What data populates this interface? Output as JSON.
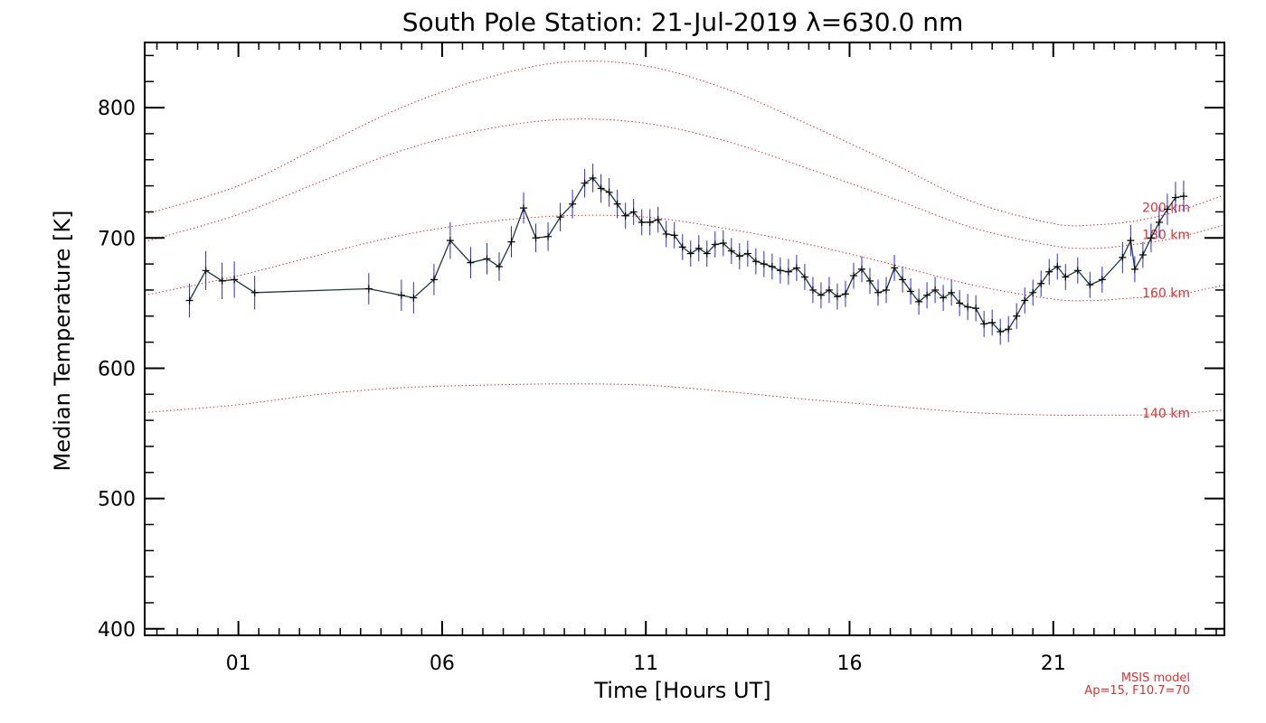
{
  "chart_data": {
    "type": "line",
    "title": "South Pole Station: 21-Jul-2019 λ=630.0 nm",
    "xlabel": "Time [Hours UT]",
    "ylabel": "Median Temperature [K]",
    "xlim": [
      -1.3,
      25.2
    ],
    "ylim": [
      395,
      850
    ],
    "xticks": [
      1,
      6,
      11,
      16,
      21
    ],
    "xtick_labels": [
      "01",
      "06",
      "11",
      "16",
      "21"
    ],
    "yticks": [
      400,
      500,
      600,
      700,
      800
    ],
    "ytick_labels": [
      "400",
      "500",
      "600",
      "700",
      "800"
    ],
    "grid": false,
    "note_lines": [
      "MSIS model",
      "Ap=15, F10.7=70"
    ],
    "model_curves": [
      {
        "label": "200 km",
        "x": [
          -1.3,
          1,
          3,
          5,
          7,
          9,
          11,
          13,
          15,
          17,
          19,
          21,
          22,
          23,
          24,
          25.2
        ],
        "y": [
          718,
          740,
          770,
          800,
          822,
          835,
          832,
          814,
          787,
          758,
          728,
          711,
          710,
          713,
          720,
          733
        ]
      },
      {
        "label": "180 km",
        "x": [
          -1.3,
          1,
          3,
          5,
          7,
          9,
          11,
          13,
          15,
          17,
          19,
          21,
          22,
          23,
          24,
          25.2
        ],
        "y": [
          697,
          718,
          743,
          767,
          783,
          791,
          788,
          774,
          753,
          731,
          708,
          694,
          692,
          695,
          700,
          710
        ]
      },
      {
        "label": "160 km",
        "x": [
          -1.3,
          1,
          3,
          5,
          7,
          9,
          11,
          13,
          15,
          17,
          19,
          21,
          22,
          23,
          24,
          25.2
        ],
        "y": [
          656,
          671,
          687,
          702,
          712,
          717,
          716,
          707,
          695,
          680,
          664,
          653,
          652,
          654,
          656,
          664
        ]
      },
      {
        "label": "140 km",
        "x": [
          -1.3,
          1,
          3,
          5,
          7,
          9,
          11,
          13,
          15,
          17,
          19,
          21,
          22,
          23,
          24,
          25.2
        ],
        "y": [
          566,
          572,
          580,
          585,
          587,
          588,
          587,
          582,
          576,
          571,
          566,
          564,
          564,
          564,
          565,
          568
        ]
      }
    ],
    "series": [
      {
        "name": "Median Temperature",
        "x": [
          -0.2,
          0.2,
          0.6,
          0.9,
          1.4,
          4.2,
          5.0,
          5.3,
          5.8,
          6.2,
          6.7,
          7.1,
          7.4,
          7.7,
          8.0,
          8.3,
          8.6,
          8.9,
          9.2,
          9.5,
          9.7,
          9.9,
          10.1,
          10.3,
          10.5,
          10.7,
          10.9,
          11.1,
          11.3,
          11.5,
          11.7,
          11.9,
          12.1,
          12.3,
          12.5,
          12.7,
          12.9,
          13.1,
          13.3,
          13.5,
          13.7,
          13.9,
          14.1,
          14.3,
          14.5,
          14.7,
          14.9,
          15.1,
          15.3,
          15.5,
          15.7,
          15.9,
          16.1,
          16.3,
          16.5,
          16.7,
          16.9,
          17.1,
          17.3,
          17.5,
          17.7,
          17.9,
          18.1,
          18.3,
          18.5,
          18.7,
          18.9,
          19.1,
          19.3,
          19.5,
          19.7,
          19.9,
          20.1,
          20.3,
          20.5,
          20.7,
          20.9,
          21.1,
          21.3,
          21.6,
          21.9,
          22.2,
          22.7,
          22.9,
          23.0,
          23.2,
          23.4,
          23.6,
          23.8,
          24.0,
          24.2
        ],
        "y": [
          652,
          675,
          667,
          668,
          658,
          661,
          656,
          654,
          668,
          698,
          681,
          684,
          678,
          697,
          723,
          700,
          701,
          716,
          726,
          742,
          746,
          738,
          735,
          726,
          717,
          720,
          712,
          712,
          714,
          703,
          702,
          693,
          688,
          692,
          688,
          695,
          696,
          690,
          686,
          688,
          682,
          680,
          678,
          675,
          674,
          677,
          670,
          660,
          656,
          660,
          655,
          657,
          671,
          676,
          667,
          658,
          660,
          677,
          668,
          659,
          651,
          656,
          660,
          654,
          658,
          650,
          647,
          646,
          634,
          635,
          628,
          630,
          640,
          652,
          658,
          665,
          674,
          678,
          670,
          675,
          664,
          668,
          685,
          698,
          676,
          687,
          700,
          712,
          722,
          731,
          732
        ],
        "err": [
          13,
          15,
          14,
          14,
          13,
          12,
          12,
          12,
          12,
          14,
          12,
          12,
          11,
          12,
          12,
          11,
          11,
          11,
          11,
          11,
          11,
          11,
          11,
          11,
          10,
          10,
          10,
          10,
          10,
          10,
          10,
          10,
          10,
          10,
          10,
          10,
          10,
          10,
          10,
          10,
          10,
          10,
          10,
          10,
          10,
          10,
          10,
          10,
          10,
          10,
          10,
          10,
          10,
          10,
          10,
          10,
          10,
          10,
          10,
          10,
          10,
          10,
          10,
          10,
          10,
          10,
          10,
          10,
          10,
          10,
          10,
          10,
          10,
          10,
          10,
          10,
          10,
          10,
          10,
          10,
          10,
          10,
          12,
          12,
          10,
          10,
          11,
          12,
          12,
          12,
          12
        ]
      }
    ]
  },
  "colors": {
    "axis": "#000000",
    "data_line": "#1a3a3a",
    "error_bar": "#2a2ae0",
    "marker": "#000000",
    "model": "#e03030"
  }
}
